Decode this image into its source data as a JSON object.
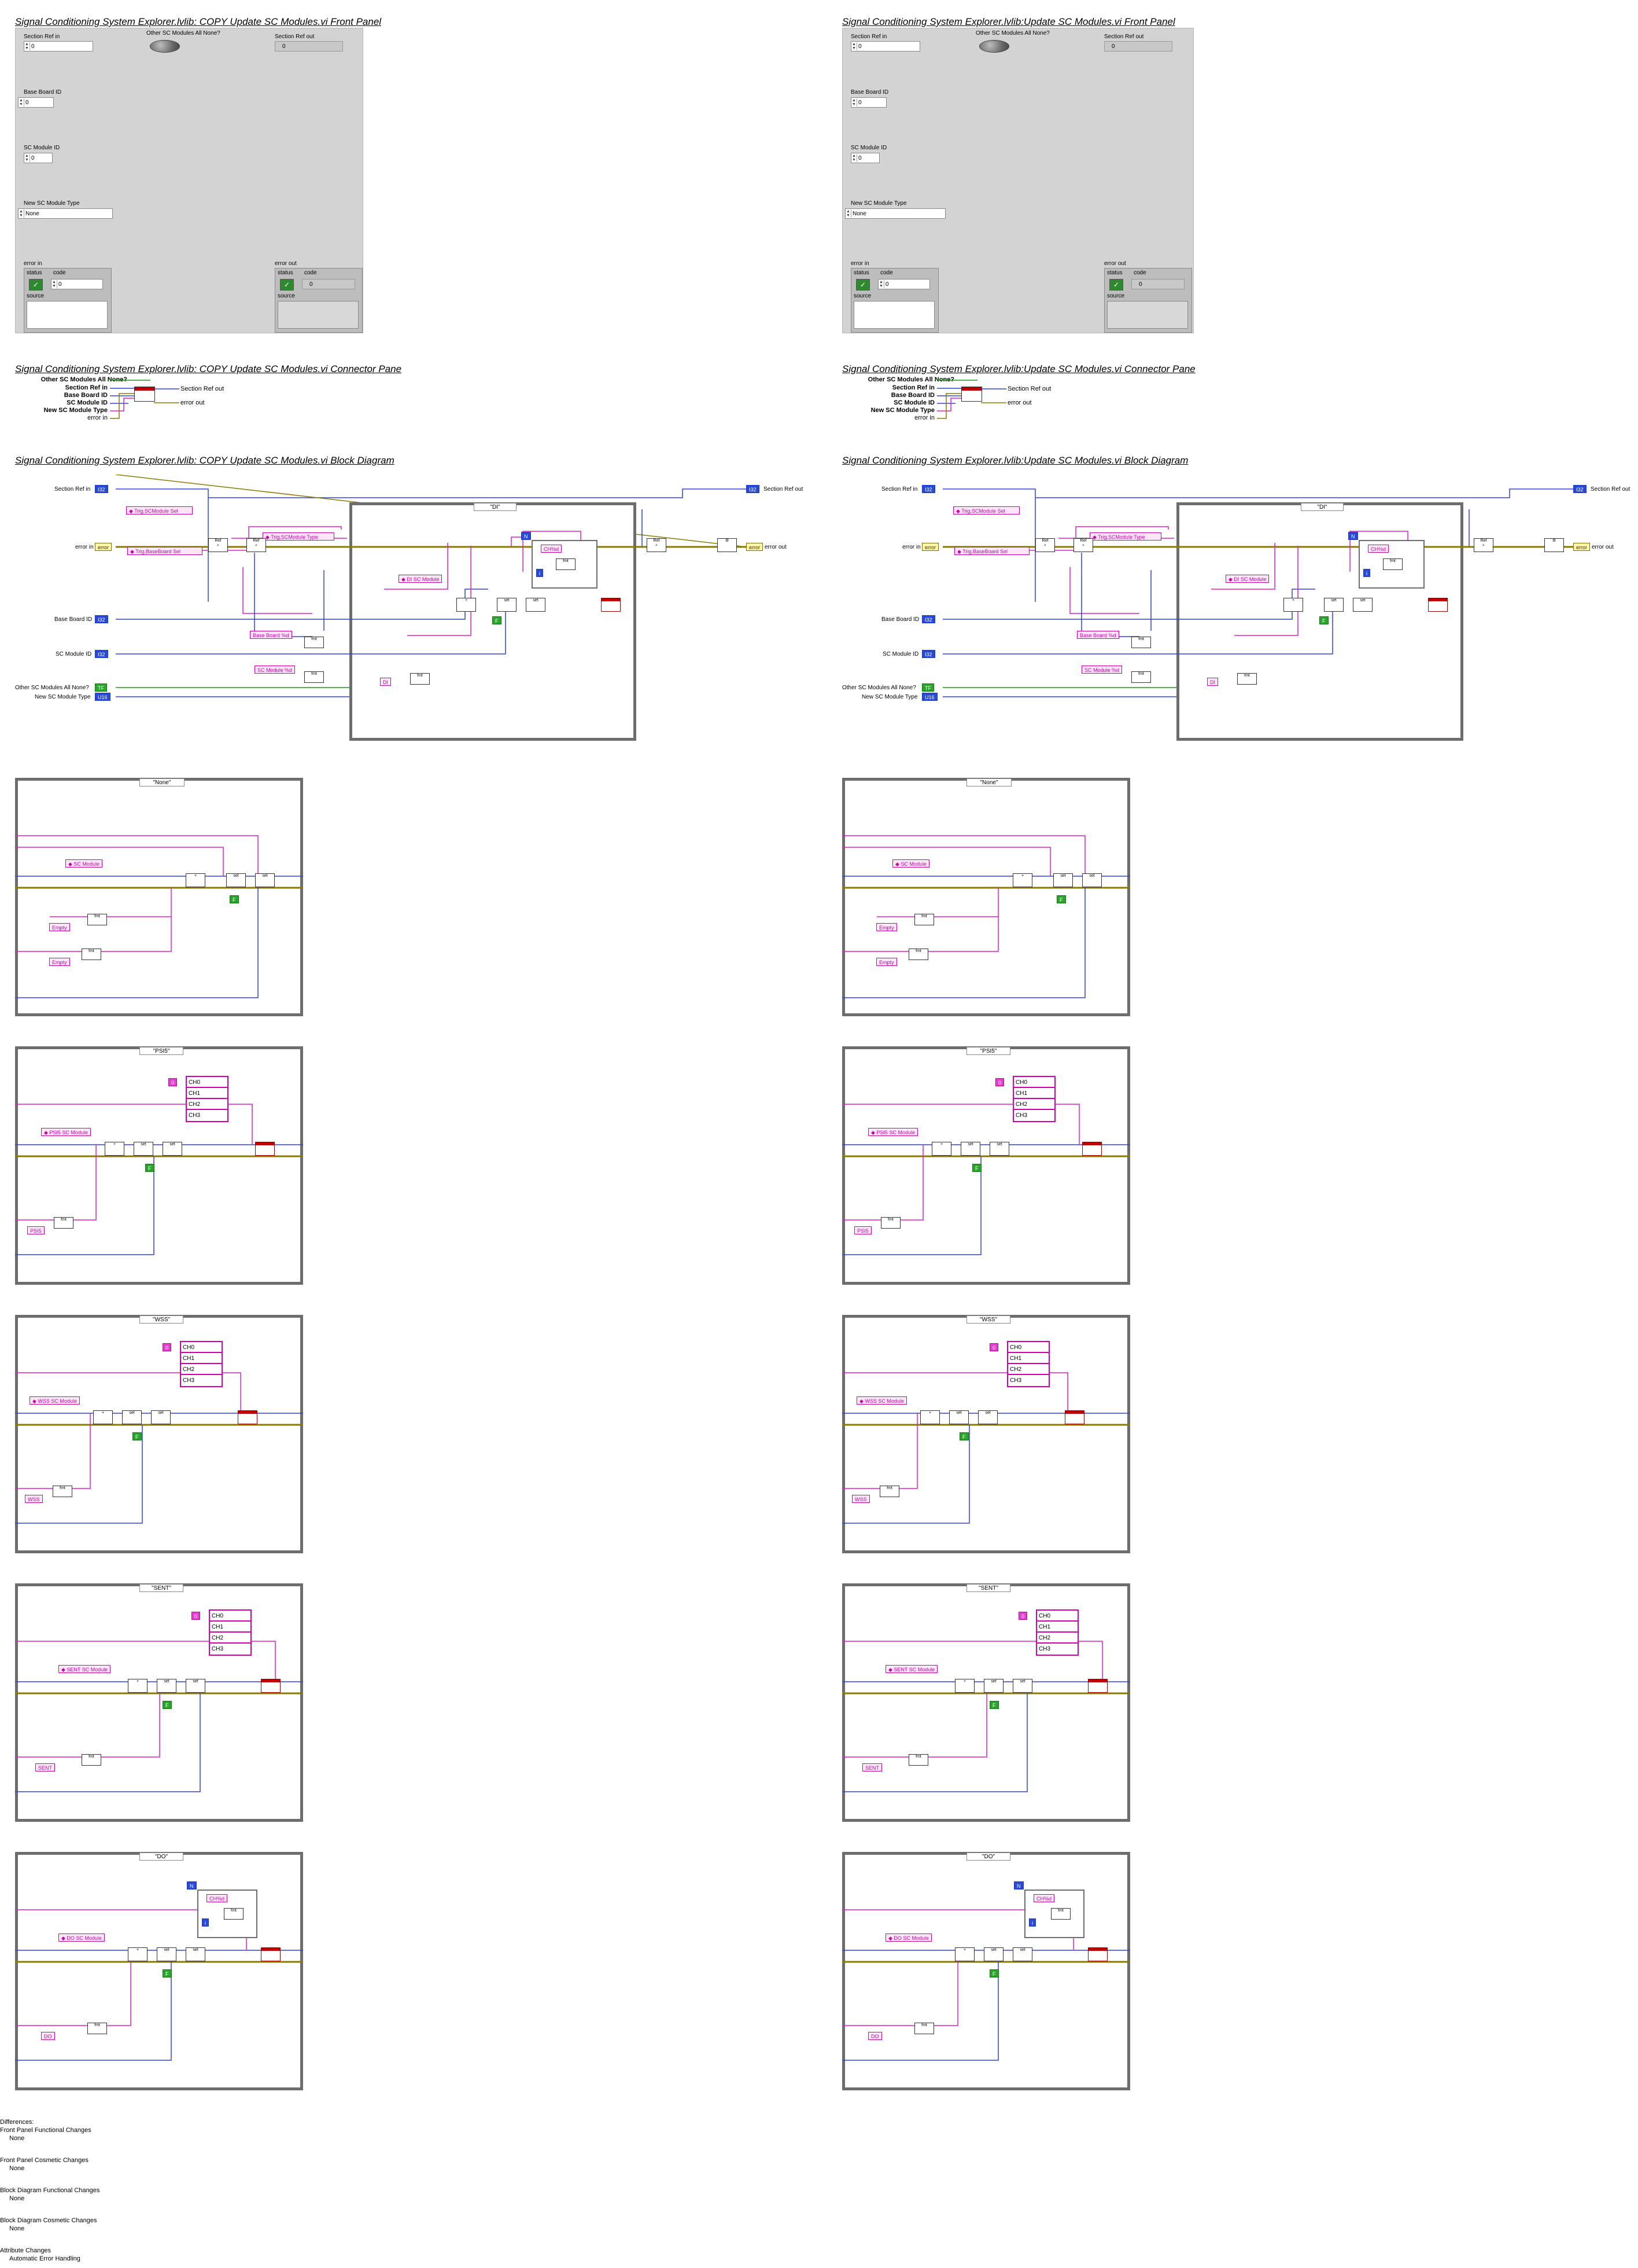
{
  "left": {
    "front_title": "Signal Conditioning System Explorer.lvlib:  COPY  Update SC Modules.vi Front Panel",
    "connector_title": "Signal Conditioning System Explorer.lvlib:  COPY  Update SC Modules.vi Connector Pane",
    "block_title": "Signal Conditioning System Explorer.lvlib:  COPY  Update SC Modules.vi Block Diagram"
  },
  "right": {
    "front_title": "Signal Conditioning System Explorer.lvlib:Update SC Modules.vi Front Panel",
    "connector_title": "Signal Conditioning System Explorer.lvlib:Update SC Modules.vi Connector Pane",
    "block_title": "Signal Conditioning System Explorer.lvlib:Update SC Modules.vi Block Diagram"
  },
  "front_panel": {
    "section_ref_in": "Section Ref in",
    "section_ref_in_value": "0",
    "other_sc_modules": "Other SC Modules All None?",
    "section_ref_out": "Section Ref out",
    "section_ref_out_value": "0",
    "base_board_id": "Base Board ID",
    "base_board_id_value": "0",
    "sc_module_id": "SC Module ID",
    "sc_module_id_value": "0",
    "new_sc_module_type": "New SC Module Type",
    "new_sc_module_type_value": "None",
    "error_in": "error in",
    "error_out": "error out",
    "status": "status",
    "code": "code",
    "code_value": "0",
    "source": "source",
    "status_check": "✓"
  },
  "connector": {
    "other": "Other SC Modules All None?",
    "section_ref_in": "Section Ref in",
    "base_board_id": "Base Board ID",
    "sc_module_id": "SC Module ID",
    "new_type": "New SC Module Type",
    "error_in": "error in",
    "section_ref_out": "Section Ref out",
    "error_out": "error out"
  },
  "block": {
    "section_ref_in": "Section Ref in",
    "section_ref_out": "Section Ref out",
    "error_in": "error in",
    "error_out": "error out",
    "base_board_id": "Base Board ID",
    "sc_module_id": "SC Module ID",
    "other": "Other SC Modules All None?",
    "new_type": "New SC Module Type",
    "case_di": "\"DI\"",
    "case_none": "\"None\"",
    "case_psi5": "\"PSI5\"",
    "case_wss": "\"WSS\"",
    "case_sent": "\"SENT\"",
    "case_do": "\"DO\"",
    "base_board_tag": "Base Board %d",
    "sc_module_tag": "SC Module %d",
    "di_tag": "DI",
    "empty_tag": "Empty",
    "psi5_tag": "PSI5",
    "wss_tag": "WSS",
    "sent_tag": "SENT",
    "do_tag": "DO",
    "ch_d": "CH%d",
    "ch": [
      "CH0",
      "CH1",
      "CH2",
      "CH3"
    ]
  },
  "differences": {
    "heading": "Differences:",
    "fp_func": "Front Panel Functional Changes",
    "fp_func_v": "None",
    "fp_cos": "Front Panel Cosmetic Changes",
    "fp_cos_v": "None",
    "bd_func": "Block Diagram Functional Changes",
    "bd_func_v": "None",
    "bd_cos": "Block Diagram Cosmetic Changes",
    "bd_cos_v": "None",
    "attr": "Attribute Changes",
    "attr_v": "Automatic Error Handling"
  },
  "colors": {
    "pink_wire": "#e020c8",
    "blue_wire": "#3040e0",
    "error_wire": "#8a7a00",
    "bool_wire": "#1a9a1a",
    "panel": "#d3d3d3",
    "case_border": "#6d6d6d"
  }
}
